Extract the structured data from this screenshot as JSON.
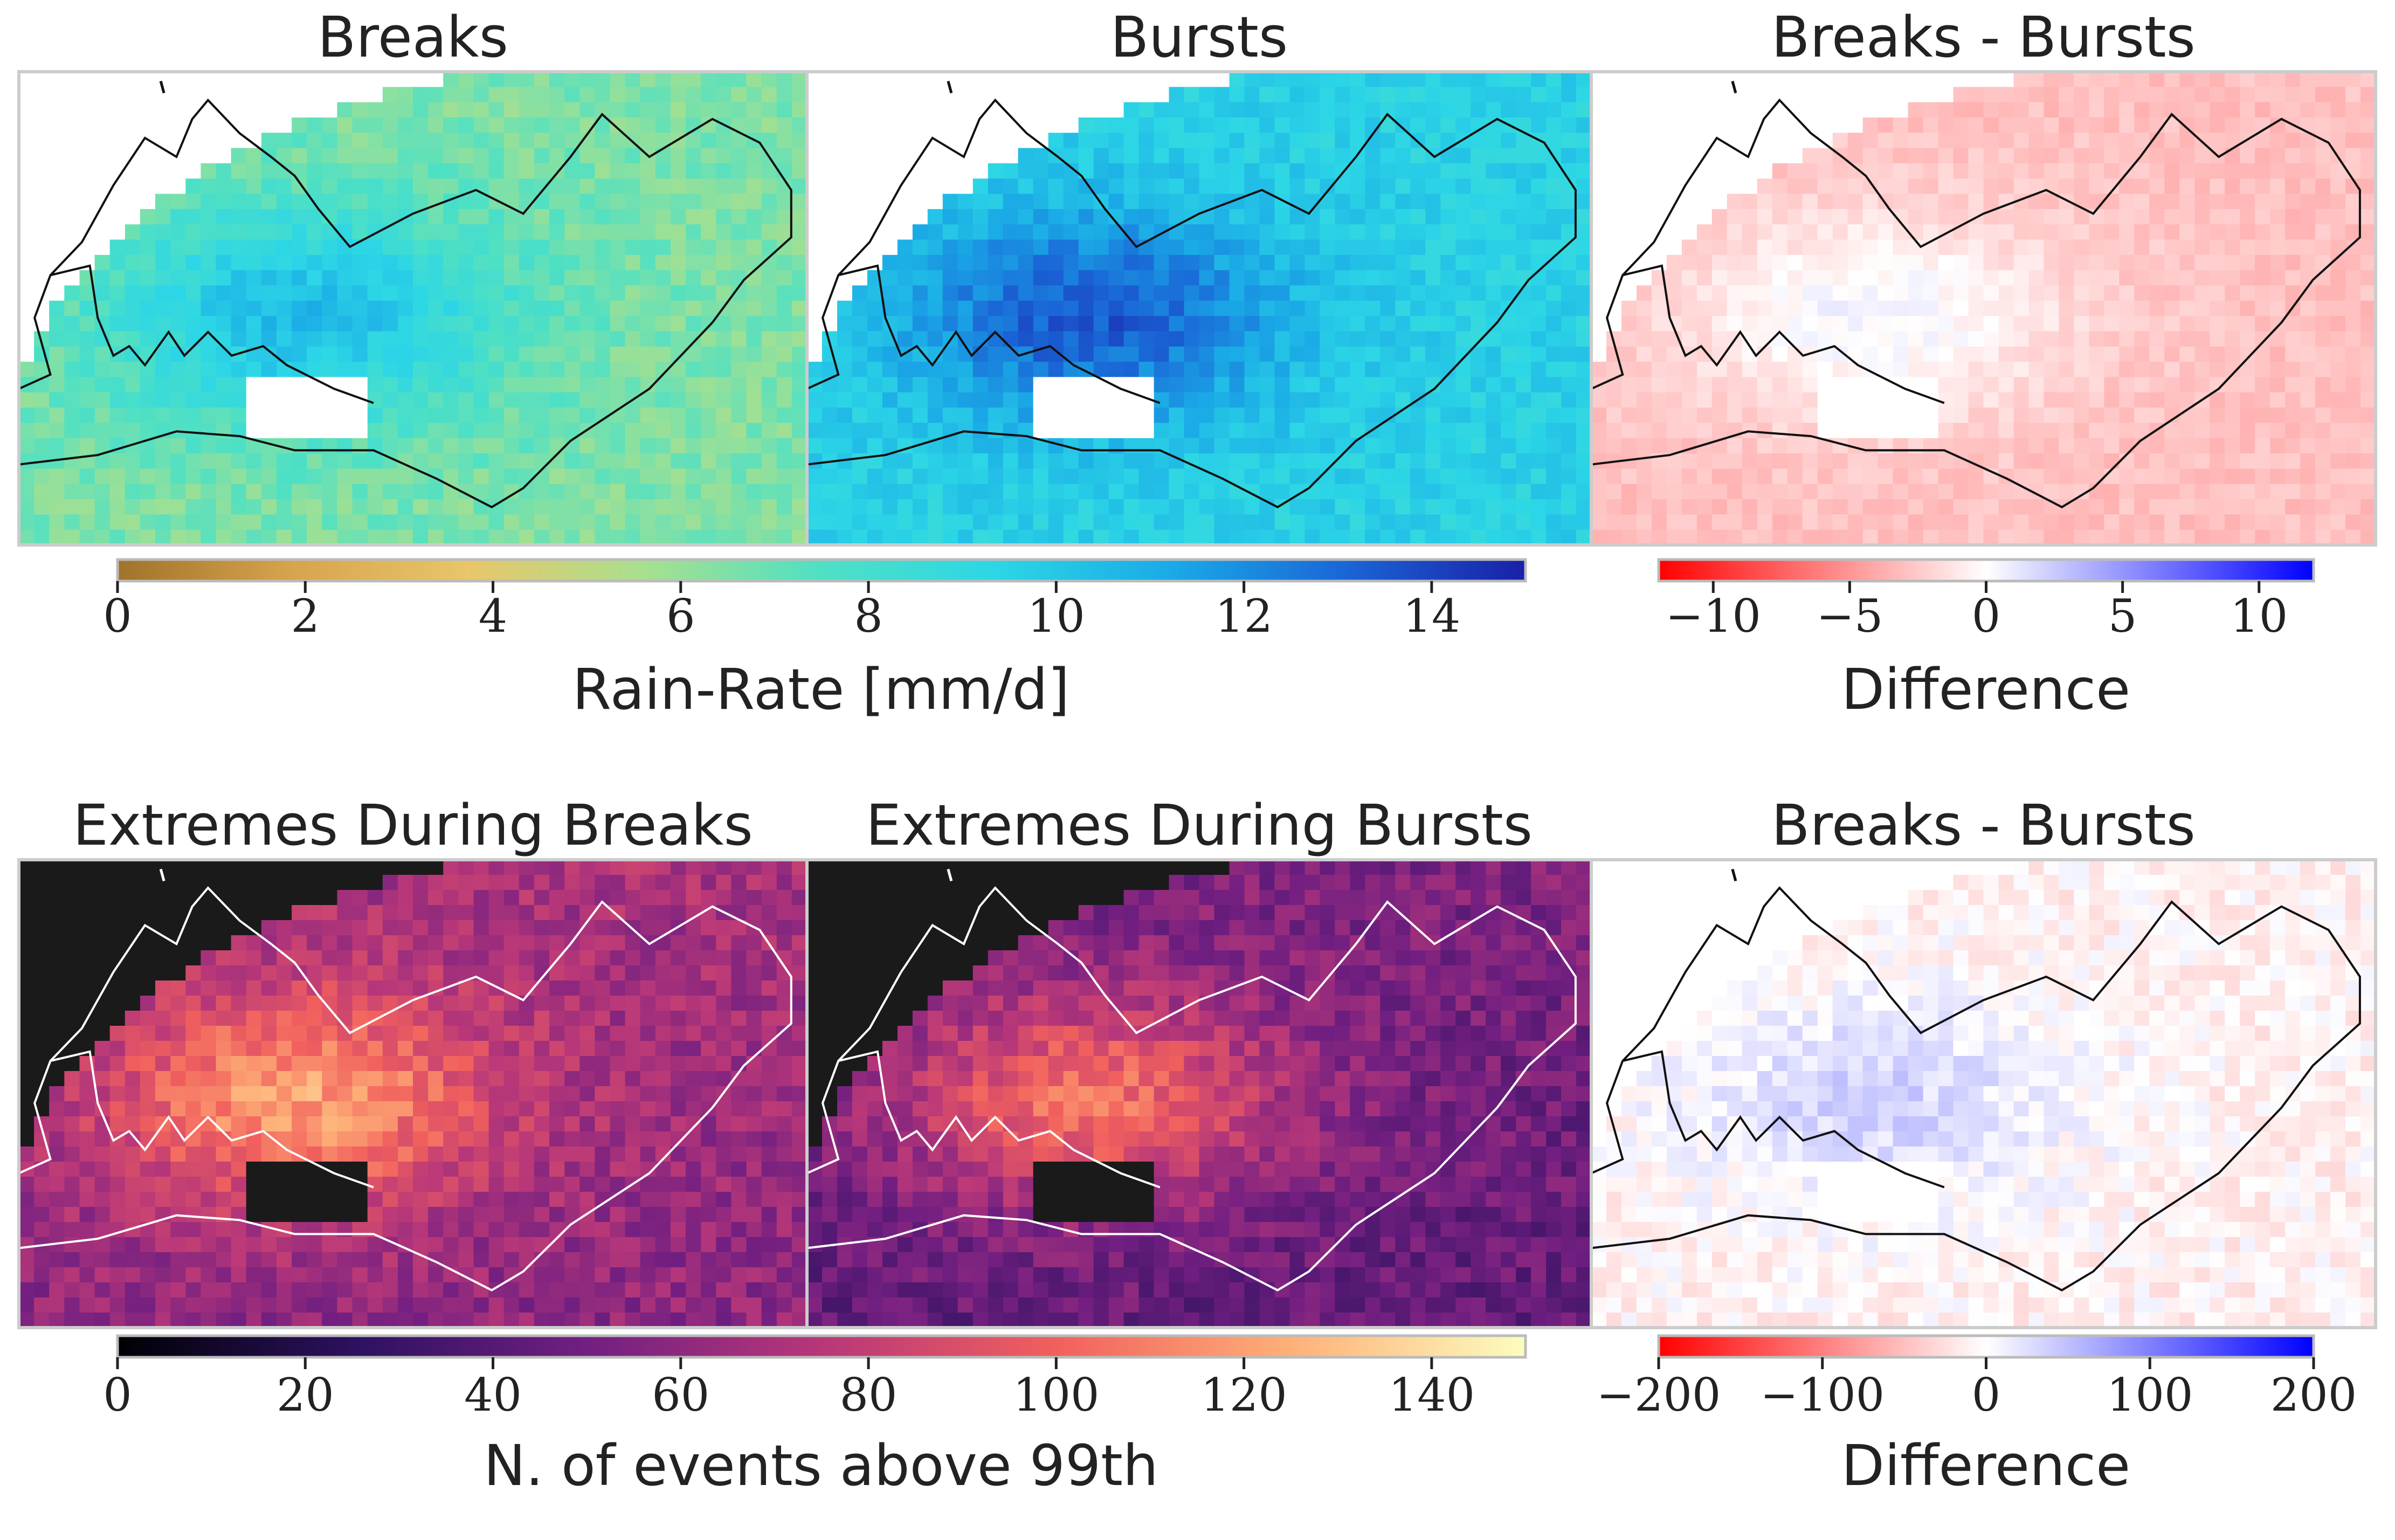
{
  "chart_data": [
    {
      "type": "heatmap",
      "title": "Breaks",
      "colormap": "terrain-like",
      "cmap_key": "rain",
      "vlim": [
        0,
        15
      ],
      "approx_mean": 6.5
    },
    {
      "type": "heatmap",
      "title": "Bursts",
      "colormap": "terrain-like",
      "cmap_key": "rain",
      "vlim": [
        0,
        15
      ],
      "approx_mean": 9.5
    },
    {
      "type": "heatmap",
      "title": "Breaks - Bursts",
      "colormap": "bwr_r",
      "cmap_key": "diff",
      "vlim": [
        -12,
        12
      ],
      "approx_mean": -3
    },
    {
      "type": "heatmap",
      "title": "Extremes During Breaks",
      "colormap": "magma",
      "cmap_key": "ext",
      "vlim": [
        0,
        150
      ],
      "approx_mean": 70
    },
    {
      "type": "heatmap",
      "title": "Extremes During Bursts",
      "colormap": "magma",
      "cmap_key": "ext",
      "vlim": [
        0,
        150
      ],
      "approx_mean": 55
    },
    {
      "type": "heatmap",
      "title": "Breaks - Bursts",
      "colormap": "bwr_r",
      "cmap_key": "diff2",
      "vlim": [
        -200,
        200
      ],
      "approx_mean": -10
    }
  ],
  "colorbars": [
    {
      "id": "rain",
      "label": "Rain-Rate [mm/d]",
      "vmin": 0,
      "vmax": 15,
      "ticks": [
        0,
        2,
        4,
        6,
        8,
        10,
        12,
        14
      ],
      "tick_labels": [
        "0",
        "2",
        "4",
        "6",
        "8",
        "10",
        "12",
        "14"
      ],
      "stops": [
        "#a0732a",
        "#d8a44e",
        "#e8c66a",
        "#a7e08f",
        "#4fe0c4",
        "#2cd6e6",
        "#1aa9e6",
        "#1a64d6",
        "#1a1fa8"
      ]
    },
    {
      "id": "diff",
      "label": "Difference",
      "vmin": -12,
      "vmax": 12,
      "ticks": [
        -10,
        -5,
        0,
        5,
        10
      ],
      "tick_labels": [
        "−10",
        "−5",
        "0",
        "5",
        "10"
      ],
      "stops": [
        "#ff0000",
        "#ffffff",
        "#0000ff"
      ]
    },
    {
      "id": "ext",
      "label": "N. of events above 99th",
      "vmin": 0,
      "vmax": 150,
      "ticks": [
        0,
        20,
        40,
        60,
        80,
        100,
        120,
        140
      ],
      "tick_labels": [
        "0",
        "20",
        "40",
        "60",
        "80",
        "100",
        "120",
        "140"
      ],
      "stops": [
        "#000004",
        "#2c115f",
        "#721f81",
        "#b73779",
        "#f1605d",
        "#feb078",
        "#fcfdbf"
      ]
    },
    {
      "id": "diff2",
      "label": "Difference",
      "vmin": -200,
      "vmax": 200,
      "ticks": [
        -200,
        -100,
        0,
        100,
        200
      ],
      "tick_labels": [
        "−200",
        "−100",
        "0",
        "100",
        "200"
      ],
      "stops": [
        "#ff0000",
        "#ffffff",
        "#0000ff"
      ]
    }
  ]
}
